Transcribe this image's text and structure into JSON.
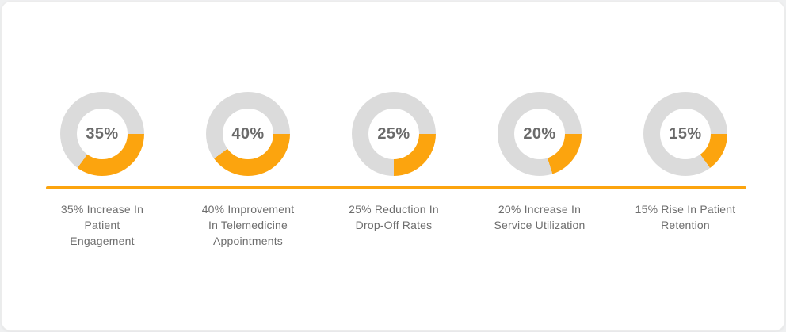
{
  "page": {
    "outer_background": "#eff0f1",
    "card_background": "#ffffff"
  },
  "colors": {
    "accent_orange": "#FCA40E",
    "ring_gray": "#DBDBDB",
    "value_text": "#6A6A6A",
    "label_text": "#6E6E6E"
  },
  "divider": {
    "color": "#FCA40E"
  },
  "stats": [
    {
      "value": "35%",
      "percent": 35,
      "label": "35% Increase In Patient Engagement",
      "label_lines": [
        "35% Increase In",
        "Patient",
        "Engagement"
      ]
    },
    {
      "value": "40%",
      "percent": 40,
      "label": "40% Improvement In Telemedicine Appointments",
      "label_lines": [
        "40% Improvement",
        "In Telemedicine",
        "Appointments"
      ]
    },
    {
      "value": "25%",
      "percent": 25,
      "label": "25% Reduction In Drop-Off Rates",
      "label_lines": [
        "25% Reduction In",
        "Drop-Off Rates"
      ]
    },
    {
      "value": "20%",
      "percent": 20,
      "label": "20% Increase In Service Utilization",
      "label_lines": [
        "20% Increase In",
        "Service Utilization"
      ]
    },
    {
      "value": "15%",
      "percent": 15,
      "label": "15% Rise In Patient Retention",
      "label_lines": [
        "15% Rise In Patient",
        "Retention"
      ]
    }
  ],
  "chart_data": [
    {
      "type": "pie",
      "subtype": "donut",
      "title": "35% Increase In Patient Engagement",
      "center_label": "35%",
      "segment_labels": [
        "filled",
        "remaining"
      ],
      "values": [
        35,
        65
      ],
      "colors": [
        "#FCA40E",
        "#DBDBDB"
      ],
      "start_angle": "3-o-clock",
      "direction": "clockwise"
    },
    {
      "type": "pie",
      "subtype": "donut",
      "title": "40% Improvement In Telemedicine Appointments",
      "center_label": "40%",
      "segment_labels": [
        "filled",
        "remaining"
      ],
      "values": [
        40,
        60
      ],
      "colors": [
        "#FCA40E",
        "#DBDBDB"
      ],
      "start_angle": "3-o-clock",
      "direction": "clockwise"
    },
    {
      "type": "pie",
      "subtype": "donut",
      "title": "25% Reduction In Drop-Off Rates",
      "center_label": "25%",
      "segment_labels": [
        "filled",
        "remaining"
      ],
      "values": [
        25,
        75
      ],
      "colors": [
        "#FCA40E",
        "#DBDBDB"
      ],
      "start_angle": "3-o-clock",
      "direction": "clockwise"
    },
    {
      "type": "pie",
      "subtype": "donut",
      "title": "20% Increase In Service Utilization",
      "center_label": "20%",
      "segment_labels": [
        "filled",
        "remaining"
      ],
      "values": [
        20,
        80
      ],
      "colors": [
        "#FCA40E",
        "#DBDBDB"
      ],
      "start_angle": "3-o-clock",
      "direction": "clockwise"
    },
    {
      "type": "pie",
      "subtype": "donut",
      "title": "15% Rise In Patient Retention",
      "center_label": "15%",
      "segment_labels": [
        "filled",
        "remaining"
      ],
      "values": [
        15,
        85
      ],
      "colors": [
        "#FCA40E",
        "#DBDBDB"
      ],
      "start_angle": "3-o-clock",
      "direction": "clockwise"
    }
  ]
}
